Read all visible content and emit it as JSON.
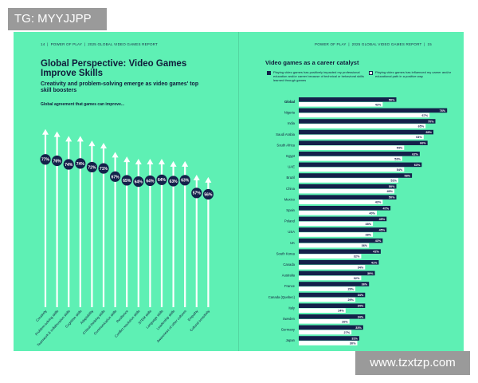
{
  "watermarks": {
    "top_left": "TG: MYYJJPP",
    "bottom_right": "www.tzxtzp.com"
  },
  "left_page": {
    "page_number": "14",
    "header_section": "POWER OF PLAY",
    "header_report": "2025 GLOBAL VIDEO GAMES REPORT",
    "title": "Global Perspective: Video Games Improve Skills",
    "subtitle": "Creativity and problem-solving emerge as video games' top skill boosters",
    "chart_heading": "Global agreement that games can improve..."
  },
  "right_page": {
    "header_section": "POWER OF PLAY",
    "header_report": "2025 GLOBAL VIDEO GAMES REPORT",
    "page_number": "15",
    "title": "Video games as a career catalyst",
    "legend_primary": "Playing video games has positively impacted my professional education and/or career because of technical or behavioral skills learned through games",
    "legend_secondary": "Playing video games has influenced my career and/or educational path in a positive way"
  },
  "colors": {
    "background": "#5ef0b4",
    "navy": "#14204a",
    "white": "#ffffff"
  },
  "chart_data": [
    {
      "type": "bar",
      "title": "Global agreement that games can improve...",
      "categories": [
        "Creativity",
        "Problem-solving skills",
        "Teamwork & collaboration skills",
        "Cognitive skills",
        "Adaptability",
        "Critical thinking skills",
        "Communication skills",
        "Resilience",
        "Conflict resolution skills",
        "STEM skills",
        "Language skills",
        "Leadership skills",
        "Awareness of other cultures",
        "Empathy",
        "Cultural sensitivity"
      ],
      "values": [
        77,
        76,
        74,
        74,
        72,
        71,
        67,
        65,
        64,
        64,
        64,
        63,
        63,
        57,
        56
      ],
      "value_labels": [
        "77%",
        "76%",
        "74%",
        "74%",
        "72%",
        "71%",
        "67%",
        "65%",
        "64%",
        "64%",
        "64%",
        "63%",
        "63%",
        "57%",
        "56%"
      ],
      "ylim": [
        0,
        100
      ]
    },
    {
      "type": "bar",
      "orientation": "horizontal",
      "title": "Video games as a career catalyst",
      "categories": [
        "Global",
        "Nigeria",
        "India",
        "Saudi Arabia",
        "South Africa",
        "Egypt",
        "UAE",
        "Brazil",
        "China",
        "Mexico",
        "Spain",
        "Poland",
        "USA",
        "UK",
        "South Korea",
        "Canada",
        "Australia",
        "France",
        "Canada (Quebec)",
        "Italy",
        "Sweden",
        "Germany",
        "Japan"
      ],
      "series": [
        {
          "name": "Playing video games has positively impacted my professional education and/or career because of technical or behavioral skills learned through games",
          "values": [
            50,
            76,
            70,
            69,
            66,
            62,
            63,
            58,
            50,
            50,
            47,
            45,
            45,
            43,
            42,
            41,
            39,
            36,
            34,
            34,
            34,
            33,
            31
          ],
          "labels": [
            "50%",
            "76%",
            "70%",
            "69%",
            "66%",
            "62%",
            "63%",
            "58%",
            "50%",
            "50%",
            "47%",
            "45%",
            "45%",
            "43%",
            "42%",
            "41%",
            "39%",
            "36%",
            "34%",
            "34%",
            "34%",
            "33%",
            "31%"
          ]
        },
        {
          "name": "Playing video games has influenced my career and/or educational path in a positive way",
          "values": [
            43,
            67,
            65,
            64,
            54,
            53,
            54,
            51,
            49,
            43,
            40,
            38,
            38,
            36,
            32,
            34,
            32,
            29,
            29,
            24,
            26,
            27,
            30
          ],
          "labels": [
            "43%",
            "67%",
            "65%",
            "64%",
            "54%",
            "53%",
            "54%",
            "51%",
            "49%",
            "43%",
            "40%",
            "38%",
            "38%",
            "36%",
            "32%",
            "34%",
            "32%",
            "29%",
            "29%",
            "24%",
            "26%",
            "27%",
            "30%"
          ]
        }
      ],
      "xlim": [
        0,
        100
      ]
    }
  ]
}
